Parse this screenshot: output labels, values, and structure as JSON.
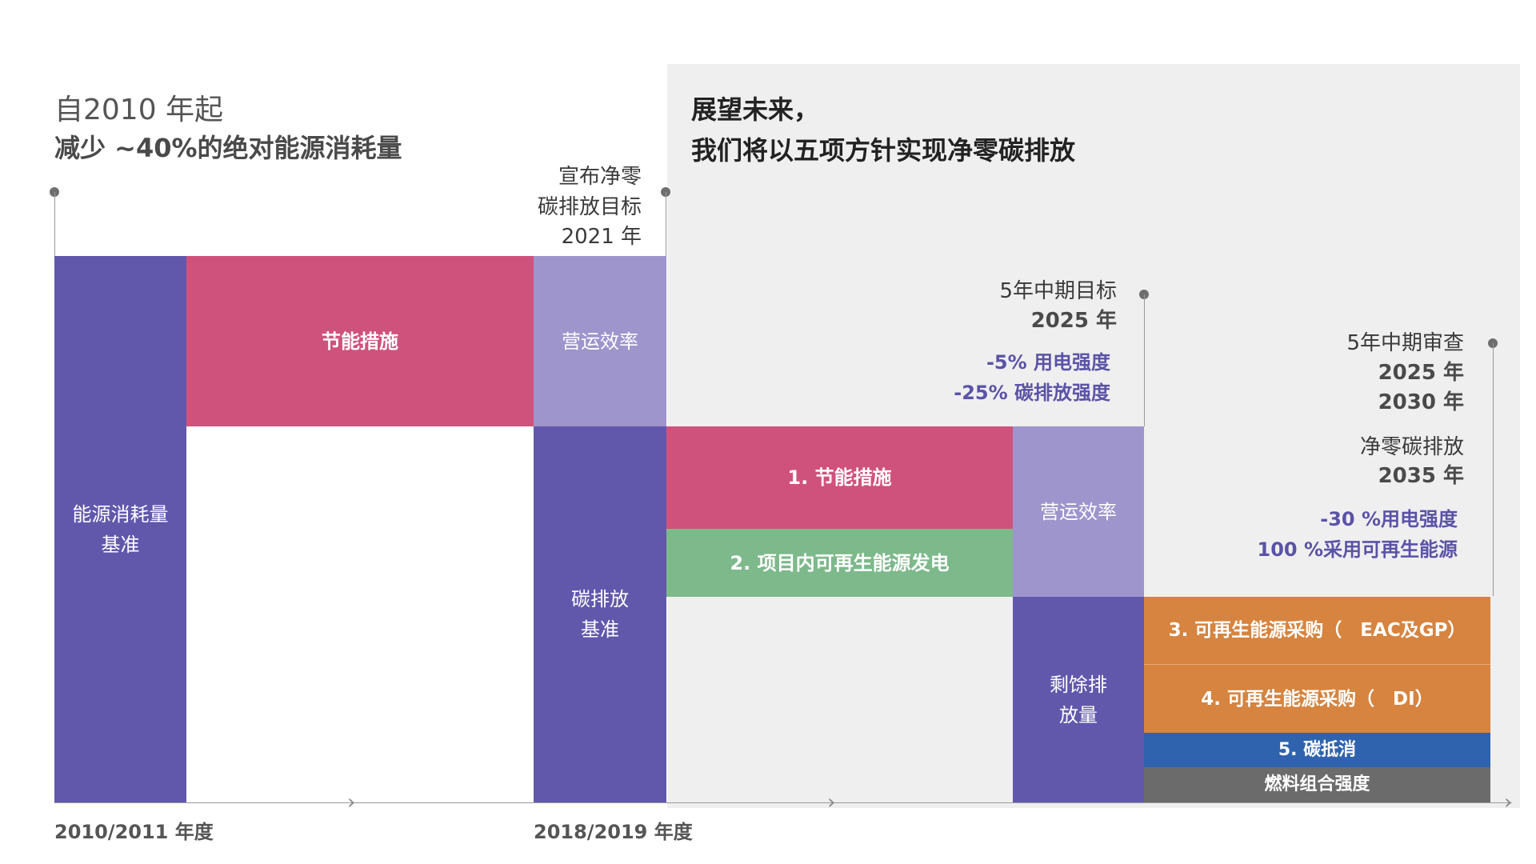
{
  "left": {
    "title_line1": "自2010 年起",
    "title_line2": "减少 ~40%的绝对能源消耗量"
  },
  "right": {
    "title_line1": "展望未来，",
    "title_line2": "我们将以五项方针实现净零碳排放"
  },
  "milestones": {
    "announce": {
      "line1": "宣布净零",
      "line2": "碳排放目标",
      "line3": "2021 年"
    },
    "mid_target": {
      "line1": "5年中期目标",
      "line2": "2025 年",
      "acc1": "-5% 用电强度",
      "acc2": "-25% 碳排放强度"
    },
    "mid_review": {
      "line1": "5年中期审查",
      "line2": "2025 年",
      "line3": "2030 年",
      "line4": "净零碳排放",
      "line5": "2035 年",
      "acc1": "-30 %用电强度",
      "acc2": "100 %采用可再生能源"
    }
  },
  "blocks": {
    "energy_baseline": {
      "line1": "能源消耗量",
      "line2": "基准"
    },
    "energy_saving_1": "节能措施",
    "ops_efficiency_1": "营运效率",
    "carbon_baseline": {
      "line1": "碳排放",
      "line2": "基准"
    },
    "item1": "1. 节能措施",
    "item2": "2. 项目内可再生能源发电",
    "ops_efficiency_2": "营运效率",
    "residual": {
      "line1": "剩馀排",
      "line2": "放量"
    },
    "item3": "3. 可再生能源采购（　EAC及GP）",
    "item4": "4. 可再生能源采购（　DI）",
    "item5": "5. 碳抵消",
    "fuel_mix": "燃料组合强度"
  },
  "axis": {
    "label1": "2010/2011 年度",
    "label2": "2018/2019 年度"
  },
  "colors": {
    "purple": "#6158ac",
    "pink": "#cf527c",
    "lavender": "#9e95cc",
    "green": "#7db98b",
    "orange": "#d6843f",
    "blue": "#2f63ae",
    "grey": "#6b6b6b",
    "panel": "#efefef",
    "accent_text": "#5b53a6"
  }
}
